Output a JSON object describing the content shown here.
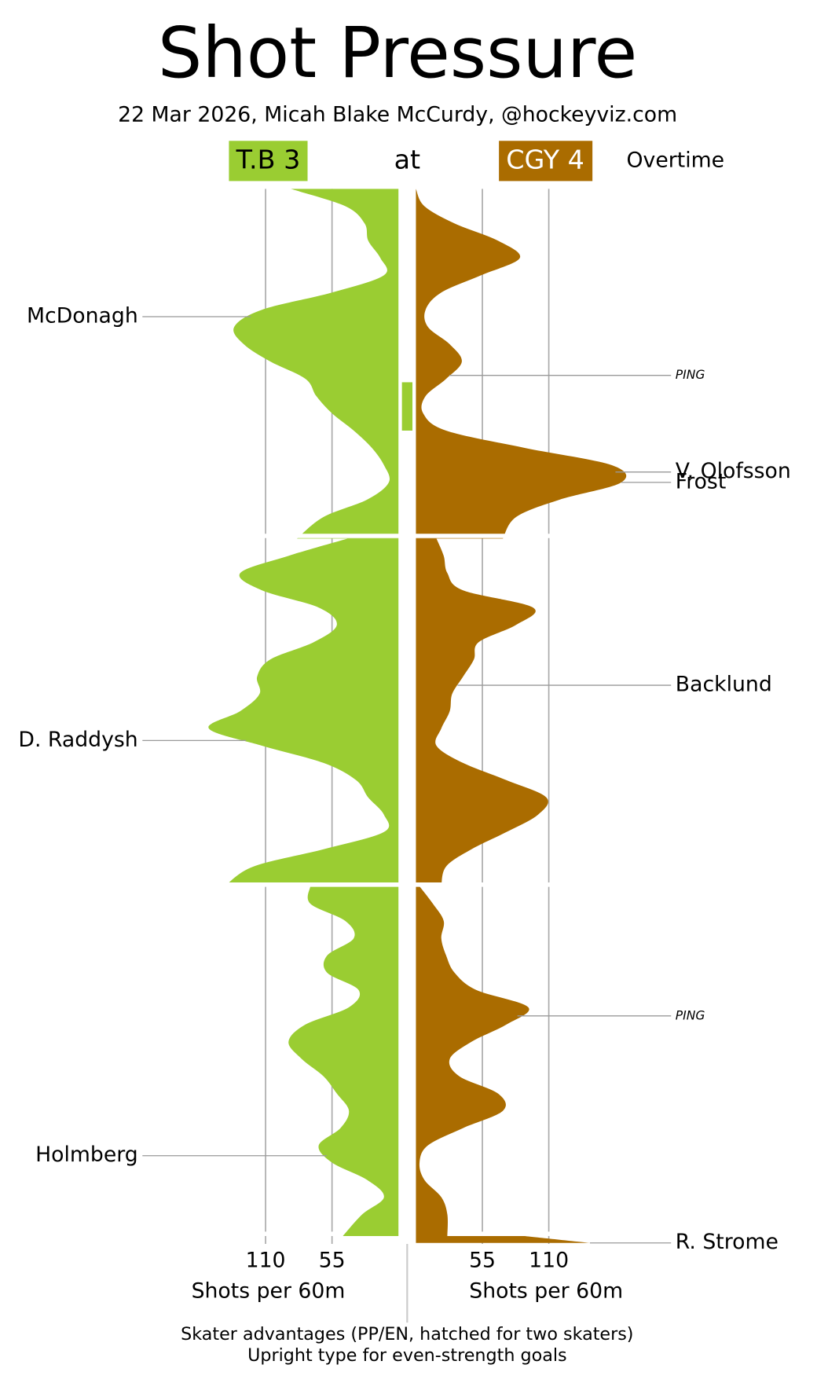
{
  "chart_data": {
    "type": "area",
    "title": "Shot Pressure",
    "subtitle": "22 Mar 2026, Micah Blake McCurdy, @hockeyviz.com",
    "connector": "at",
    "period_label": "Overtime",
    "xlabel": "Shots per 60m",
    "xlim": [
      0,
      170
    ],
    "xticks": [
      55,
      110
    ],
    "grid": true,
    "notes": [
      "Skater advantages (PP/EN, hatched for two skaters)",
      "Upright type for even-strength goals"
    ],
    "x": [
      [
        0,
        1,
        2,
        3,
        4,
        5,
        6,
        7,
        8,
        9,
        10,
        11,
        12,
        13,
        14,
        15,
        16,
        17,
        18,
        19,
        20
      ],
      [
        20,
        21,
        22,
        23,
        24,
        25,
        26,
        27,
        28,
        29,
        30,
        31,
        32,
        33,
        34,
        35,
        36,
        37,
        38,
        39,
        40
      ],
      [
        40,
        41,
        42,
        43,
        44,
        45,
        46,
        47,
        48,
        49,
        50,
        51,
        52,
        53,
        54,
        55,
        56,
        57,
        58,
        59,
        60
      ],
      [
        60,
        60.4
      ]
    ],
    "series": [
      {
        "name": "T.B 3",
        "color": "#9acd32",
        "text_color": "#000000",
        "side": "left",
        "values": [
          [
            89,
            44,
            28,
            25,
            15,
            12,
            55,
            113,
            136,
            128,
            106,
            77,
            68,
            55,
            37,
            22,
            12,
            8,
            26,
            62,
            84
          ],
          [
            42,
            91,
            131,
            113,
            66,
            51,
            70,
            106,
            117,
            115,
            131,
            157,
            113,
            62,
            35,
            25,
            12,
            12,
            62,
            120,
            144
          ],
          [
            73,
            73,
            44,
            37,
            59,
            59,
            33,
            41,
            77,
            91,
            80,
            62,
            51,
            41,
            48,
            66,
            55,
            26,
            12,
            30,
            46
          ],
          [
            null,
            null
          ]
        ],
        "advantages": [
          [
            11.2,
            14.0
          ]
        ],
        "goals": [
          {
            "label": "McDonagh",
            "time": 7.4,
            "italic": false
          },
          {
            "label": "D. Raddysh",
            "time": 31.7,
            "italic": false
          },
          {
            "label": "Holmberg",
            "time": 55.6,
            "italic": false
          }
        ]
      },
      {
        "name": "CGY 4",
        "color": "#aa6c00",
        "text_color": "#ffffff",
        "side": "right",
        "values": [
          [
            0,
            7,
            32,
            68,
            86,
            54,
            21,
            8,
            10,
            28,
            38,
            25,
            8,
            6,
            25,
            90,
            162,
            170,
            119,
            83,
            72
          ],
          [
            17,
            23,
            26,
            39,
            97,
            83,
            52,
            48,
            39,
            30,
            28,
            21,
            17,
            39,
            75,
            108,
            101,
            75,
            46,
            25,
            21
          ],
          [
            3,
            14,
            23,
            21,
            25,
            32,
            50,
            93,
            75,
            46,
            28,
            36,
            68,
            72,
            39,
            10,
            3,
            7,
            21,
            26,
            26
          ],
          [
            90,
            144
          ]
        ],
        "advantages": [],
        "goals": [
          {
            "label": "PING",
            "time": 10.8,
            "italic": true
          },
          {
            "label": "V. Olofsson",
            "time": 16.4,
            "italic": false
          },
          {
            "label": "Frost",
            "time": 17.0,
            "italic": false
          },
          {
            "label": "Backlund",
            "time": 28.5,
            "italic": false
          },
          {
            "label": "PING",
            "time": 47.5,
            "italic": true
          },
          {
            "label": "R. Strome",
            "time": 60.4,
            "italic": false
          }
        ]
      }
    ]
  }
}
